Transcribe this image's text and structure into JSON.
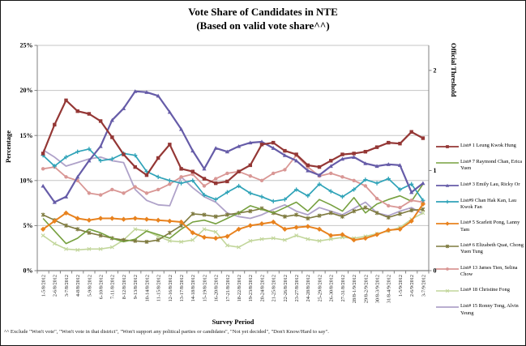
{
  "title": {
    "line1": "Vote Share of Candidates in NTE",
    "line2": "(Based on valid vote share^^)"
  },
  "y_axis": {
    "label": "Percentage"
  },
  "y2_axis": {
    "label": "Official Threshold"
  },
  "x_axis": {
    "label": "Survey Period"
  },
  "footnote": "^^ Exclude \"Won't vote\", \"Won't vote in that district\", \"Won't support any political parties or candidates\", \"Not yet decided\", \"Don't Know/Hard to say\".",
  "chart_data": {
    "type": "line",
    "title": "Vote Share of Candidates in NTE (Based on valid vote share^^)",
    "xlabel": "Survey Period",
    "ylabel": "Percentage",
    "y2label": "Official Threshold",
    "ylim": [
      0,
      25
    ],
    "y_tick_step": 5,
    "y_tick_format": "percent",
    "y2_ticks": [
      0,
      1,
      2
    ],
    "y2_percent_per_unit": 11.111,
    "grid": true,
    "legend_position": "right",
    "categories": [
      "1-5/8/2012",
      "2-6/8/2012",
      "3-7/8/2012",
      "4-8/8/2012",
      "5-9/8/2012",
      "6-10/8/2012",
      "7-11/8/2012",
      "8-12/8/2012",
      "9-13/8/2012",
      "10-14/8/2012",
      "11-15/8/2012",
      "12-16/8/2012",
      "13-17/8/2012",
      "14-18/8/2012",
      "15-19/8/2012",
      "16-20/8/2012",
      "17-21/8/2012",
      "18-22/8/2012",
      "19-23/8/2012",
      "20-24/8/2012",
      "21-25/8/2012",
      "22-26/8/2012",
      "23-27/8/2012",
      "24-28/8/2012",
      "25-29/8/2012",
      "26-30/8/2012",
      "27-31/8/2012",
      "28/8-1/9/2012",
      "29/8-2/9/2012",
      "30/8-3/9/2012",
      "31/8-4/9/2012",
      "1-5/9/2012",
      "2-6/9/2012",
      "3-7/9/2012"
    ],
    "series": [
      {
        "name": "List# 1 Leung Kwok Hung",
        "color": "#943735",
        "marker": "square",
        "line_width": 2.2,
        "values": [
          13.0,
          16.2,
          18.9,
          17.7,
          17.4,
          16.6,
          14.8,
          12.9,
          11.5,
          10.6,
          12.5,
          14.0,
          11.3,
          11.0,
          10.2,
          9.7,
          9.9,
          11.0,
          11.7,
          14.0,
          14.2,
          13.3,
          12.9,
          11.7,
          11.5,
          12.2,
          12.9,
          13.0,
          13.2,
          13.7,
          14.2,
          14.1,
          15.4,
          14.7
        ]
      },
      {
        "name": "List# 7 Raymond Chan, Erica Yuen",
        "color": "#76A03F",
        "marker": "none",
        "line_width": 1.6,
        "values": [
          5.8,
          4.4,
          3.0,
          3.6,
          4.6,
          4.2,
          3.6,
          3.2,
          3.5,
          4.4,
          4.0,
          3.6,
          4.6,
          5.4,
          5.6,
          5.2,
          5.8,
          6.4,
          7.2,
          6.8,
          6.4,
          7.0,
          7.6,
          6.6,
          7.9,
          7.3,
          6.6,
          8.1,
          6.4,
          7.4,
          7.9,
          8.3,
          7.7,
          9.6
        ]
      },
      {
        "name": "List# 3 Emily Lau, Ricky Or",
        "color": "#665CA8",
        "marker": "triangle",
        "line_width": 2.2,
        "values": [
          9.4,
          7.6,
          8.2,
          10.4,
          12.2,
          13.8,
          16.7,
          18.0,
          19.9,
          19.8,
          19.4,
          17.6,
          15.7,
          13.3,
          11.3,
          13.6,
          13.2,
          13.8,
          14.2,
          14.3,
          13.6,
          12.8,
          12.2,
          11.1,
          10.6,
          11.6,
          12.4,
          12.6,
          11.9,
          11.6,
          11.8,
          11.7,
          8.7,
          9.7
        ]
      },
      {
        "name": "List#9 Chan Hak Kan, Lau Kwok Fan",
        "color": "#2FA3B8",
        "marker": "plus",
        "line_width": 1.7,
        "values": [
          12.8,
          11.6,
          12.6,
          13.2,
          13.5,
          12.2,
          12.4,
          13.0,
          12.8,
          11.0,
          10.4,
          10.0,
          9.7,
          10.0,
          8.4,
          7.9,
          8.7,
          9.4,
          8.6,
          8.2,
          7.7,
          7.9,
          9.0,
          8.3,
          9.6,
          8.8,
          8.2,
          9.0,
          10.1,
          9.7,
          10.2,
          9.0,
          9.6,
          7.8
        ]
      },
      {
        "name": "List# 5 Scarlett Pong, Lanny Tam",
        "color": "#E8821E",
        "marker": "diamond",
        "line_width": 2.0,
        "values": [
          4.6,
          5.5,
          6.4,
          5.8,
          5.6,
          5.8,
          5.8,
          5.7,
          5.8,
          5.7,
          5.6,
          5.5,
          5.4,
          4.2,
          3.7,
          3.6,
          3.8,
          4.6,
          5.0,
          5.2,
          5.4,
          4.6,
          4.8,
          4.9,
          4.6,
          3.9,
          4.0,
          3.4,
          3.6,
          4.0,
          4.5,
          4.6,
          5.5,
          7.4
        ]
      },
      {
        "name": "List# 6 Elizabeth Quat, Chong Yuen Tung",
        "color": "#7E7A3F",
        "marker": "star",
        "line_width": 1.6,
        "values": [
          6.2,
          5.6,
          5.0,
          4.6,
          4.2,
          3.9,
          3.6,
          3.4,
          3.3,
          3.2,
          3.4,
          4.2,
          5.0,
          6.3,
          6.2,
          6.0,
          6.2,
          6.4,
          6.6,
          6.9,
          6.4,
          6.0,
          6.2,
          5.8,
          6.1,
          6.4,
          6.0,
          6.6,
          7.0,
          6.4,
          5.9,
          6.3,
          6.7,
          6.8
        ]
      },
      {
        "name": "List# 13 James Tien, Selina Chow",
        "color": "#D99795",
        "marker": "circle",
        "line_width": 1.8,
        "values": [
          11.3,
          11.5,
          10.4,
          10.0,
          8.6,
          8.4,
          9.0,
          8.6,
          9.3,
          8.6,
          9.0,
          9.6,
          10.4,
          10.7,
          9.4,
          10.2,
          10.8,
          11.0,
          10.5,
          10.0,
          10.8,
          11.2,
          12.8,
          11.5,
          10.5,
          10.8,
          10.4,
          10.0,
          9.4,
          8.0,
          7.2,
          7.0,
          7.8,
          7.6
        ]
      },
      {
        "name": "List# 18 Christine Fong",
        "color": "#C2D69B",
        "marker": "x",
        "line_width": 1.6,
        "values": [
          3.9,
          3.0,
          2.4,
          2.3,
          2.4,
          2.4,
          2.6,
          3.4,
          4.6,
          4.4,
          3.8,
          3.3,
          3.2,
          3.4,
          4.6,
          4.3,
          2.8,
          2.6,
          3.3,
          3.5,
          3.6,
          3.4,
          3.9,
          3.5,
          3.3,
          3.5,
          3.7,
          3.6,
          3.8,
          4.1,
          4.4,
          4.8,
          5.7,
          6.4
        ]
      },
      {
        "name": "List# 15 Ronny Tong, Alvin Yeung",
        "color": "#AFA2C9",
        "marker": "none",
        "line_width": 1.8,
        "values": [
          13.4,
          12.6,
          11.6,
          12.0,
          12.4,
          12.6,
          12.2,
          12.0,
          9.0,
          7.8,
          7.3,
          7.2,
          10.4,
          9.2,
          8.2,
          7.6,
          6.4,
          6.0,
          5.8,
          6.2,
          6.8,
          7.3,
          6.6,
          6.2,
          7.0,
          6.6,
          6.2,
          6.9,
          7.6,
          6.4,
          6.1,
          6.6,
          7.0,
          6.3
        ]
      }
    ]
  }
}
